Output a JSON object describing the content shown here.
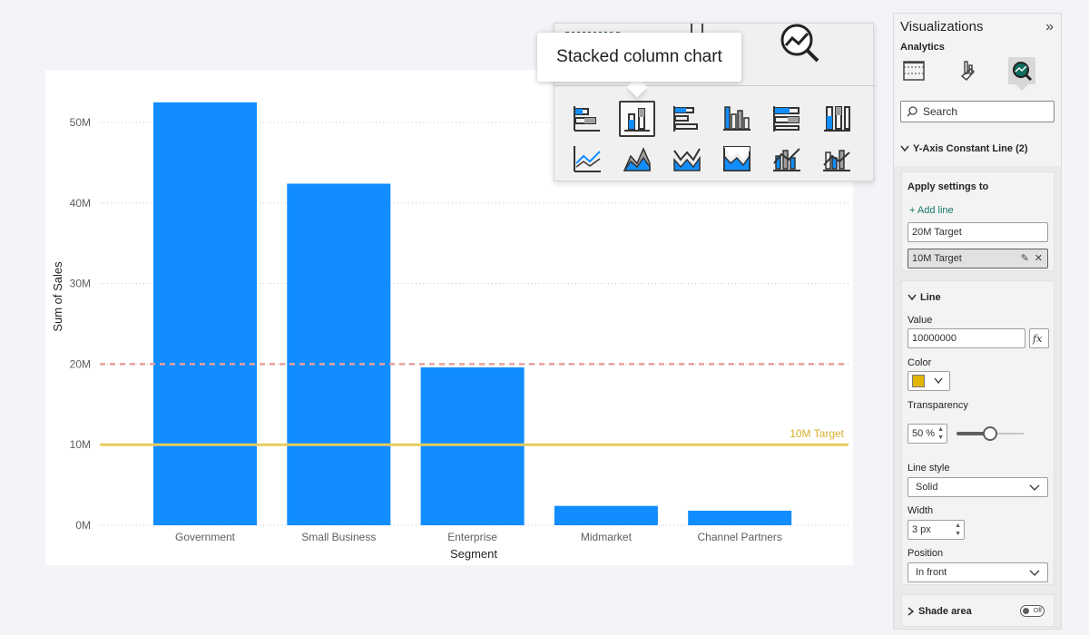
{
  "chart_data": {
    "type": "bar",
    "xlabel": "Segment",
    "ylabel": "Sum of Sales",
    "categories": [
      "Government",
      "Small Business",
      "Enterprise",
      "Midmarket",
      "Channel Partners"
    ],
    "values": [
      52500000,
      42400000,
      19600000,
      2400000,
      1800000
    ],
    "ylim": [
      0,
      56000000
    ],
    "yticks": [
      0,
      10000000,
      20000000,
      30000000,
      40000000,
      50000000
    ],
    "ytick_labels": [
      "0M",
      "10M",
      "20M",
      "30M",
      "40M",
      "50M"
    ],
    "bar_color": "#118dff",
    "grid": true,
    "reference_lines": [
      {
        "value": 20000000,
        "color": "#e8a0a0",
        "style": "dashed",
        "label": ""
      },
      {
        "value": 10000000,
        "color": "#e6cc5c",
        "style": "solid",
        "label": "10M Target"
      }
    ]
  },
  "picker": {
    "tooltip": "Stacked column chart",
    "icons": [
      "stacked-bar-chart-icon",
      "stacked-column-chart-icon",
      "clustered-bar-chart-icon",
      "clustered-column-chart-icon",
      "100-stacked-bar-chart-icon",
      "100-stacked-column-chart-icon",
      "line-chart-icon",
      "area-chart-icon",
      "stacked-area-chart-icon",
      "100-stacked-area-chart-icon",
      "line-and-stacked-column-chart-icon",
      "line-and-clustered-column-chart-icon"
    ],
    "selected_index": 1
  },
  "pane": {
    "title": "Visualizations",
    "subtitle": "Analytics",
    "search_placeholder": "Search",
    "section_title": "Y-Axis Constant Line (2)",
    "apply_settings_label": "Apply settings to",
    "add_line_label": "+ Add line",
    "lines": [
      "20M Target",
      "10M Target"
    ],
    "line_section_title": "Line",
    "value_label": "Value",
    "value": "10000000",
    "fx_label": "fx",
    "color_label": "Color",
    "color_swatch": "#e3b505",
    "transparency_label": "Transparency",
    "transparency_value": "50 %",
    "transparency_level": 0.5,
    "line_style_label": "Line style",
    "line_style_value": "Solid",
    "width_label": "Width",
    "width_value": "3 px",
    "position_label": "Position",
    "position_value": "In front",
    "shade_area_label": "Shade area",
    "shade_toggle_text": "Off"
  }
}
